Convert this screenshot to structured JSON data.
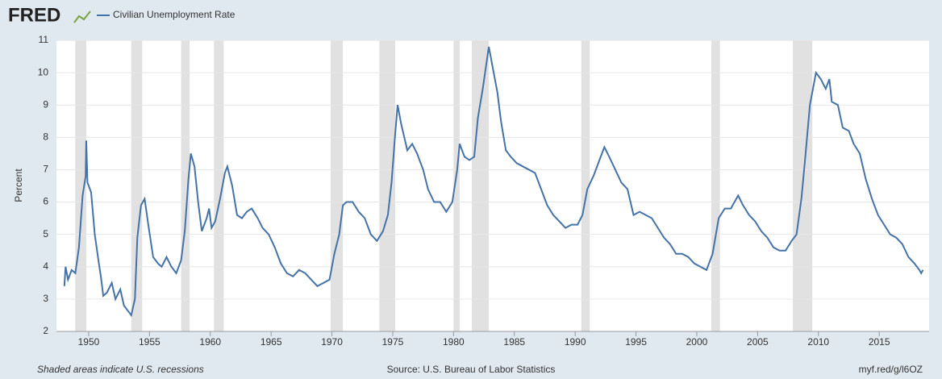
{
  "brand": "FRED",
  "chart_data": {
    "type": "line",
    "series": [
      {
        "name": "Civilian Unemployment Rate",
        "color": "#4572a7",
        "x": [
          1948.0,
          1948.1,
          1948.3,
          1948.6,
          1948.9,
          1949.2,
          1949.5,
          1949.75,
          1949.8,
          1949.9,
          1950.2,
          1950.5,
          1950.8,
          1951.0,
          1951.2,
          1951.5,
          1951.9,
          1952.2,
          1952.6,
          1952.9,
          1953.3,
          1953.5,
          1953.8,
          1954.0,
          1954.3,
          1954.6,
          1954.9,
          1955.3,
          1955.7,
          1956.0,
          1956.4,
          1956.8,
          1957.2,
          1957.6,
          1957.9,
          1958.2,
          1958.4,
          1958.7,
          1959.0,
          1959.3,
          1959.7,
          1959.9,
          1960.1,
          1960.4,
          1960.8,
          1961.2,
          1961.4,
          1961.8,
          1962.2,
          1962.6,
          1963.0,
          1963.4,
          1963.9,
          1964.3,
          1964.8,
          1965.3,
          1965.8,
          1966.3,
          1966.8,
          1967.3,
          1967.8,
          1968.3,
          1968.8,
          1969.3,
          1969.8,
          1970.2,
          1970.6,
          1970.9,
          1971.2,
          1971.7,
          1972.2,
          1972.7,
          1973.2,
          1973.7,
          1974.2,
          1974.6,
          1974.9,
          1975.2,
          1975.4,
          1975.7,
          1976.2,
          1976.6,
          1977.0,
          1977.5,
          1977.9,
          1978.4,
          1978.9,
          1979.4,
          1979.9,
          1980.3,
          1980.5,
          1980.9,
          1981.3,
          1981.7,
          1982.0,
          1982.4,
          1982.9,
          1983.2,
          1983.6,
          1983.9,
          1984.3,
          1984.7,
          1985.2,
          1985.7,
          1986.2,
          1986.7,
          1987.2,
          1987.7,
          1988.2,
          1988.7,
          1989.2,
          1989.7,
          1990.2,
          1990.6,
          1991.0,
          1991.5,
          1992.0,
          1992.4,
          1992.8,
          1993.3,
          1993.8,
          1994.3,
          1994.8,
          1995.3,
          1995.8,
          1996.3,
          1996.8,
          1997.3,
          1997.8,
          1998.3,
          1998.8,
          1999.3,
          1999.8,
          2000.3,
          2000.8,
          2001.3,
          2001.8,
          2002.3,
          2002.8,
          2003.4,
          2003.8,
          2004.3,
          2004.8,
          2005.3,
          2005.8,
          2006.3,
          2006.8,
          2007.3,
          2007.8,
          2008.2,
          2008.6,
          2008.9,
          2009.3,
          2009.6,
          2009.8,
          2010.2,
          2010.6,
          2010.9,
          2011.1,
          2011.6,
          2012.0,
          2012.5,
          2012.9,
          2013.4,
          2013.9,
          2014.4,
          2014.9,
          2015.4,
          2015.9,
          2016.4,
          2016.9,
          2017.4,
          2017.9,
          2018.3,
          2018.45,
          2018.6
        ],
        "values": [
          3.4,
          4.0,
          3.6,
          3.9,
          3.8,
          4.6,
          6.2,
          6.8,
          7.9,
          6.6,
          6.3,
          5.0,
          4.2,
          3.7,
          3.1,
          3.2,
          3.5,
          3.0,
          3.3,
          2.8,
          2.6,
          2.5,
          3.0,
          4.9,
          5.9,
          6.1,
          5.3,
          4.3,
          4.1,
          4.0,
          4.3,
          4.0,
          3.8,
          4.2,
          5.1,
          6.7,
          7.5,
          7.1,
          6.0,
          5.1,
          5.5,
          5.8,
          5.2,
          5.4,
          6.1,
          6.9,
          7.1,
          6.5,
          5.6,
          5.5,
          5.7,
          5.8,
          5.5,
          5.2,
          5.0,
          4.6,
          4.1,
          3.8,
          3.7,
          3.9,
          3.8,
          3.6,
          3.4,
          3.5,
          3.6,
          4.4,
          5.0,
          5.9,
          6.0,
          6.0,
          5.7,
          5.5,
          5.0,
          4.8,
          5.1,
          5.6,
          6.6,
          8.1,
          9.0,
          8.4,
          7.6,
          7.8,
          7.5,
          7.0,
          6.4,
          6.0,
          6.0,
          5.7,
          6.0,
          7.0,
          7.8,
          7.4,
          7.3,
          7.4,
          8.6,
          9.5,
          10.8,
          10.2,
          9.4,
          8.5,
          7.6,
          7.4,
          7.2,
          7.1,
          7.0,
          6.9,
          6.4,
          5.9,
          5.6,
          5.4,
          5.2,
          5.3,
          5.3,
          5.6,
          6.4,
          6.8,
          7.3,
          7.7,
          7.4,
          7.0,
          6.6,
          6.4,
          5.6,
          5.7,
          5.6,
          5.5,
          5.2,
          4.9,
          4.7,
          4.4,
          4.4,
          4.3,
          4.1,
          4.0,
          3.9,
          4.4,
          5.5,
          5.8,
          5.8,
          6.2,
          5.9,
          5.6,
          5.4,
          5.1,
          4.9,
          4.6,
          4.5,
          4.5,
          4.8,
          5.0,
          6.1,
          7.3,
          9.0,
          9.6,
          10.0,
          9.8,
          9.5,
          9.8,
          9.1,
          9.0,
          8.3,
          8.2,
          7.8,
          7.5,
          6.7,
          6.1,
          5.6,
          5.3,
          5.0,
          4.9,
          4.7,
          4.3,
          4.1,
          3.9,
          3.8,
          3.9
        ]
      }
    ],
    "recessions": [
      [
        1948.9,
        1949.8
      ],
      [
        1953.5,
        1954.4
      ],
      [
        1957.6,
        1958.3
      ],
      [
        1960.3,
        1961.1
      ],
      [
        1969.9,
        1970.9
      ],
      [
        1973.9,
        1975.2
      ],
      [
        1980.0,
        1980.5
      ],
      [
        1981.5,
        1982.9
      ],
      [
        1990.5,
        1991.2
      ],
      [
        2001.2,
        2001.9
      ],
      [
        2007.9,
        2009.5
      ]
    ],
    "ylabel": "Percent",
    "xlim": [
      1947.35,
      2019.1
    ],
    "xticks": [
      1950,
      1955,
      1960,
      1965,
      1970,
      1975,
      1980,
      1985,
      1990,
      1995,
      2000,
      2005,
      2010,
      2015
    ],
    "ylim": [
      2,
      11
    ],
    "yticks": [
      2,
      3,
      4,
      5,
      6,
      7,
      8,
      9,
      10,
      11
    ],
    "grid": true,
    "note": "Shaded areas indicate U.S. recessions",
    "source": "Source: U.S. Bureau of Labor Statistics",
    "link": "myf.red/g/l6OZ"
  }
}
